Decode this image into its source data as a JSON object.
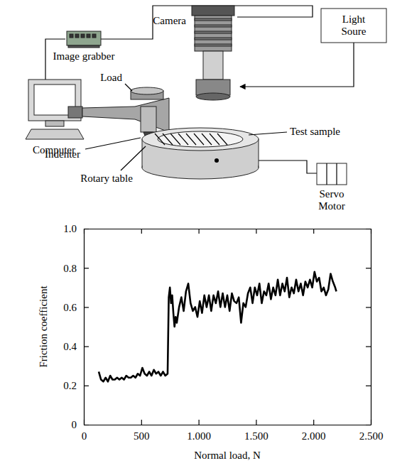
{
  "diagram": {
    "labels": [
      "Camera",
      "Light Soure",
      "Image grabber",
      "Load",
      "Test sample",
      "Computer",
      "Indenter",
      "Rotary table",
      "Servo Motor"
    ]
  },
  "chart_data": {
    "type": "line",
    "x_label": "Normal load, N",
    "y_label": "Friction coefficient",
    "color": "#000000",
    "xlim": [
      0,
      2500
    ],
    "xticks": [
      0,
      500,
      {
        "value": 1000,
        "label": "1.000"
      },
      {
        "value": 1500,
        "label": "1.500"
      },
      {
        "value": 2000,
        "label": "2.000"
      },
      {
        "value": 2500,
        "label": "2.500"
      }
    ],
    "ylim": [
      0,
      1
    ],
    "yticks": [
      0,
      0.2,
      0.4,
      0.6,
      0.8,
      {
        "value": 1,
        "label": "1.0"
      }
    ],
    "grid": false,
    "x": [
      130,
      150,
      170,
      190,
      210,
      230,
      250,
      270,
      290,
      310,
      330,
      350,
      370,
      390,
      410,
      430,
      450,
      470,
      490,
      510,
      530,
      550,
      570,
      590,
      610,
      630,
      650,
      670,
      690,
      710,
      730,
      740,
      750,
      760,
      770,
      780,
      790,
      800,
      810,
      830,
      850,
      870,
      890,
      910,
      930,
      950,
      970,
      990,
      1010,
      1030,
      1050,
      1070,
      1090,
      1110,
      1130,
      1150,
      1170,
      1190,
      1210,
      1230,
      1250,
      1270,
      1290,
      1310,
      1330,
      1350,
      1370,
      1390,
      1410,
      1430,
      1450,
      1470,
      1490,
      1510,
      1530,
      1550,
      1570,
      1590,
      1610,
      1630,
      1650,
      1670,
      1690,
      1710,
      1730,
      1750,
      1770,
      1790,
      1810,
      1830,
      1850,
      1870,
      1890,
      1910,
      1930,
      1950,
      1970,
      1990,
      2010,
      2030,
      2050,
      2070,
      2090,
      2110,
      2130,
      2150,
      2170,
      2190,
      2200
    ],
    "values": [
      0.27,
      0.23,
      0.22,
      0.24,
      0.22,
      0.25,
      0.23,
      0.23,
      0.24,
      0.23,
      0.24,
      0.23,
      0.25,
      0.24,
      0.24,
      0.25,
      0.24,
      0.26,
      0.25,
      0.29,
      0.26,
      0.25,
      0.27,
      0.25,
      0.28,
      0.26,
      0.27,
      0.25,
      0.27,
      0.25,
      0.26,
      0.65,
      0.7,
      0.62,
      0.66,
      0.57,
      0.5,
      0.55,
      0.52,
      0.6,
      0.65,
      0.58,
      0.68,
      0.72,
      0.62,
      0.58,
      0.6,
      0.55,
      0.63,
      0.57,
      0.66,
      0.6,
      0.66,
      0.58,
      0.66,
      0.62,
      0.68,
      0.6,
      0.67,
      0.6,
      0.66,
      0.58,
      0.67,
      0.63,
      0.62,
      0.65,
      0.52,
      0.62,
      0.6,
      0.67,
      0.7,
      0.62,
      0.7,
      0.66,
      0.72,
      0.62,
      0.68,
      0.66,
      0.72,
      0.64,
      0.7,
      0.66,
      0.74,
      0.66,
      0.72,
      0.68,
      0.75,
      0.65,
      0.7,
      0.67,
      0.74,
      0.68,
      0.72,
      0.66,
      0.73,
      0.7,
      0.74,
      0.7,
      0.78,
      0.73,
      0.75,
      0.68,
      0.7,
      0.66,
      0.69,
      0.77,
      0.73,
      0.7,
      0.68
    ]
  }
}
